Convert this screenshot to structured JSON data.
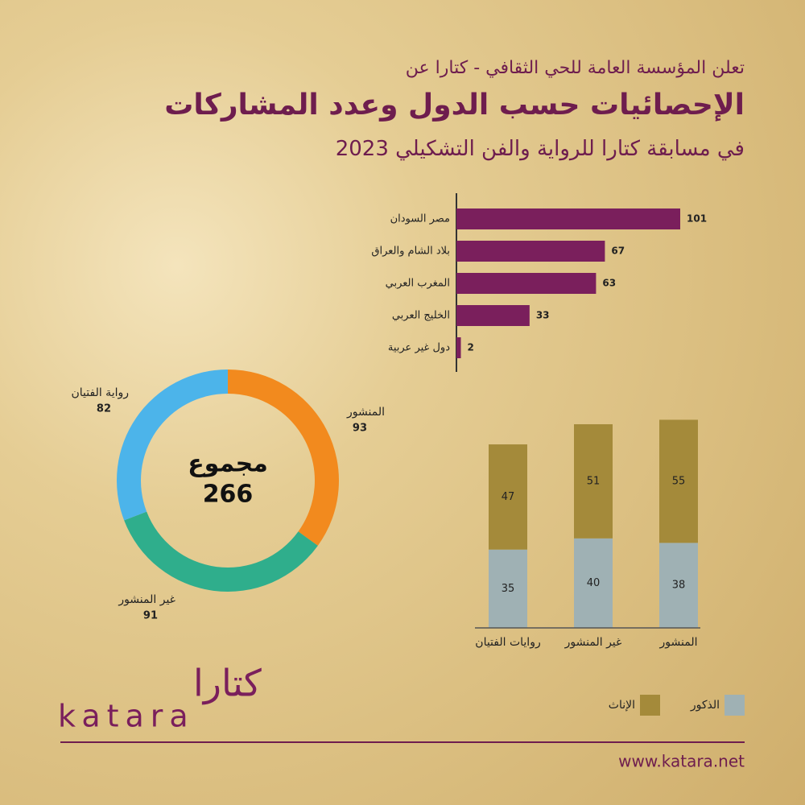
{
  "header": {
    "line1": "تعلن المؤسسة العامة للحي الثقافي - كتارا عن",
    "title": "الإحصائيات حسب الدول وعدد المشاركات",
    "subtitle": "في مسابقة كتارا للرواية والفن التشكيلي 2023"
  },
  "chart_data": [
    {
      "type": "hbar",
      "categories": [
        "مصر السودان",
        "بلاد الشام والعراق",
        "المغرب العربي",
        "الخليج العربي",
        "دول غير عربية"
      ],
      "values": [
        101,
        67,
        63,
        33,
        2
      ],
      "color": "#7a1f5c"
    },
    {
      "type": "donut",
      "categories": [
        "المنشور",
        "غير المنشور",
        "رواية الفتيان"
      ],
      "values": [
        93,
        91,
        82
      ],
      "colors": [
        "#f28a1e",
        "#2fae8c",
        "#4cb4ea"
      ],
      "center_label": "مجموع",
      "total": 266
    },
    {
      "type": "stacked_bar",
      "categories": [
        "روايات الفتيان",
        "غير المنشور",
        "المنشور"
      ],
      "series": [
        {
          "name": "الذكور",
          "color": "#9fb1b4",
          "values": [
            35,
            40,
            38
          ]
        },
        {
          "name": "الإناث",
          "color": "#a48a3a",
          "values": [
            47,
            51,
            55
          ]
        }
      ]
    }
  ],
  "footer": {
    "logo_ar": "كتارا",
    "logo_en": "katara",
    "url": "www.katara.net"
  }
}
